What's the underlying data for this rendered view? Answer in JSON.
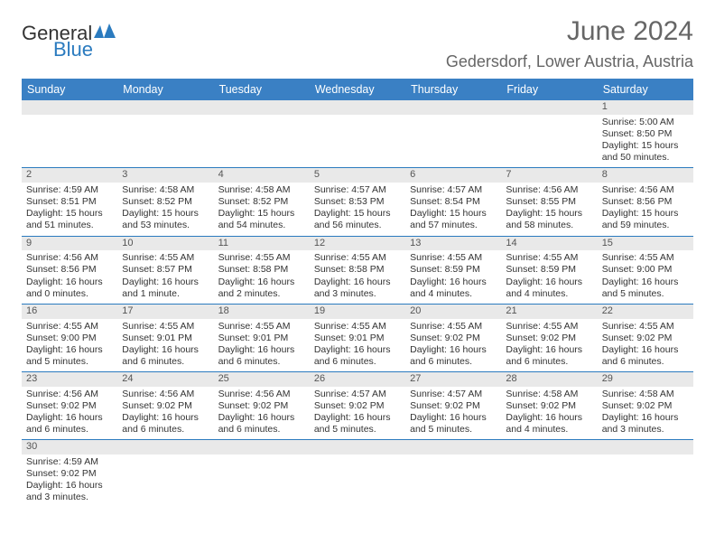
{
  "brand": {
    "part1": "General",
    "part2": "Blue",
    "logo_color": "#2b7bbf"
  },
  "title": "June 2024",
  "location": "Gedersdorf, Lower Austria, Austria",
  "header_bg": "#3a80c4",
  "header_text_color": "#ffffff",
  "divider_color": "#2b7bbf",
  "daynum_bg": "#e9e9e9",
  "days_of_week": [
    "Sunday",
    "Monday",
    "Tuesday",
    "Wednesday",
    "Thursday",
    "Friday",
    "Saturday"
  ],
  "weeks": [
    [
      null,
      null,
      null,
      null,
      null,
      null,
      {
        "n": "1",
        "sunrise": "Sunrise: 5:00 AM",
        "sunset": "Sunset: 8:50 PM",
        "daylight": "Daylight: 15 hours and 50 minutes."
      }
    ],
    [
      {
        "n": "2",
        "sunrise": "Sunrise: 4:59 AM",
        "sunset": "Sunset: 8:51 PM",
        "daylight": "Daylight: 15 hours and 51 minutes."
      },
      {
        "n": "3",
        "sunrise": "Sunrise: 4:58 AM",
        "sunset": "Sunset: 8:52 PM",
        "daylight": "Daylight: 15 hours and 53 minutes."
      },
      {
        "n": "4",
        "sunrise": "Sunrise: 4:58 AM",
        "sunset": "Sunset: 8:52 PM",
        "daylight": "Daylight: 15 hours and 54 minutes."
      },
      {
        "n": "5",
        "sunrise": "Sunrise: 4:57 AM",
        "sunset": "Sunset: 8:53 PM",
        "daylight": "Daylight: 15 hours and 56 minutes."
      },
      {
        "n": "6",
        "sunrise": "Sunrise: 4:57 AM",
        "sunset": "Sunset: 8:54 PM",
        "daylight": "Daylight: 15 hours and 57 minutes."
      },
      {
        "n": "7",
        "sunrise": "Sunrise: 4:56 AM",
        "sunset": "Sunset: 8:55 PM",
        "daylight": "Daylight: 15 hours and 58 minutes."
      },
      {
        "n": "8",
        "sunrise": "Sunrise: 4:56 AM",
        "sunset": "Sunset: 8:56 PM",
        "daylight": "Daylight: 15 hours and 59 minutes."
      }
    ],
    [
      {
        "n": "9",
        "sunrise": "Sunrise: 4:56 AM",
        "sunset": "Sunset: 8:56 PM",
        "daylight": "Daylight: 16 hours and 0 minutes."
      },
      {
        "n": "10",
        "sunrise": "Sunrise: 4:55 AM",
        "sunset": "Sunset: 8:57 PM",
        "daylight": "Daylight: 16 hours and 1 minute."
      },
      {
        "n": "11",
        "sunrise": "Sunrise: 4:55 AM",
        "sunset": "Sunset: 8:58 PM",
        "daylight": "Daylight: 16 hours and 2 minutes."
      },
      {
        "n": "12",
        "sunrise": "Sunrise: 4:55 AM",
        "sunset": "Sunset: 8:58 PM",
        "daylight": "Daylight: 16 hours and 3 minutes."
      },
      {
        "n": "13",
        "sunrise": "Sunrise: 4:55 AM",
        "sunset": "Sunset: 8:59 PM",
        "daylight": "Daylight: 16 hours and 4 minutes."
      },
      {
        "n": "14",
        "sunrise": "Sunrise: 4:55 AM",
        "sunset": "Sunset: 8:59 PM",
        "daylight": "Daylight: 16 hours and 4 minutes."
      },
      {
        "n": "15",
        "sunrise": "Sunrise: 4:55 AM",
        "sunset": "Sunset: 9:00 PM",
        "daylight": "Daylight: 16 hours and 5 minutes."
      }
    ],
    [
      {
        "n": "16",
        "sunrise": "Sunrise: 4:55 AM",
        "sunset": "Sunset: 9:00 PM",
        "daylight": "Daylight: 16 hours and 5 minutes."
      },
      {
        "n": "17",
        "sunrise": "Sunrise: 4:55 AM",
        "sunset": "Sunset: 9:01 PM",
        "daylight": "Daylight: 16 hours and 6 minutes."
      },
      {
        "n": "18",
        "sunrise": "Sunrise: 4:55 AM",
        "sunset": "Sunset: 9:01 PM",
        "daylight": "Daylight: 16 hours and 6 minutes."
      },
      {
        "n": "19",
        "sunrise": "Sunrise: 4:55 AM",
        "sunset": "Sunset: 9:01 PM",
        "daylight": "Daylight: 16 hours and 6 minutes."
      },
      {
        "n": "20",
        "sunrise": "Sunrise: 4:55 AM",
        "sunset": "Sunset: 9:02 PM",
        "daylight": "Daylight: 16 hours and 6 minutes."
      },
      {
        "n": "21",
        "sunrise": "Sunrise: 4:55 AM",
        "sunset": "Sunset: 9:02 PM",
        "daylight": "Daylight: 16 hours and 6 minutes."
      },
      {
        "n": "22",
        "sunrise": "Sunrise: 4:55 AM",
        "sunset": "Sunset: 9:02 PM",
        "daylight": "Daylight: 16 hours and 6 minutes."
      }
    ],
    [
      {
        "n": "23",
        "sunrise": "Sunrise: 4:56 AM",
        "sunset": "Sunset: 9:02 PM",
        "daylight": "Daylight: 16 hours and 6 minutes."
      },
      {
        "n": "24",
        "sunrise": "Sunrise: 4:56 AM",
        "sunset": "Sunset: 9:02 PM",
        "daylight": "Daylight: 16 hours and 6 minutes."
      },
      {
        "n": "25",
        "sunrise": "Sunrise: 4:56 AM",
        "sunset": "Sunset: 9:02 PM",
        "daylight": "Daylight: 16 hours and 6 minutes."
      },
      {
        "n": "26",
        "sunrise": "Sunrise: 4:57 AM",
        "sunset": "Sunset: 9:02 PM",
        "daylight": "Daylight: 16 hours and 5 minutes."
      },
      {
        "n": "27",
        "sunrise": "Sunrise: 4:57 AM",
        "sunset": "Sunset: 9:02 PM",
        "daylight": "Daylight: 16 hours and 5 minutes."
      },
      {
        "n": "28",
        "sunrise": "Sunrise: 4:58 AM",
        "sunset": "Sunset: 9:02 PM",
        "daylight": "Daylight: 16 hours and 4 minutes."
      },
      {
        "n": "29",
        "sunrise": "Sunrise: 4:58 AM",
        "sunset": "Sunset: 9:02 PM",
        "daylight": "Daylight: 16 hours and 3 minutes."
      }
    ],
    [
      {
        "n": "30",
        "sunrise": "Sunrise: 4:59 AM",
        "sunset": "Sunset: 9:02 PM",
        "daylight": "Daylight: 16 hours and 3 minutes."
      },
      null,
      null,
      null,
      null,
      null,
      null
    ]
  ]
}
